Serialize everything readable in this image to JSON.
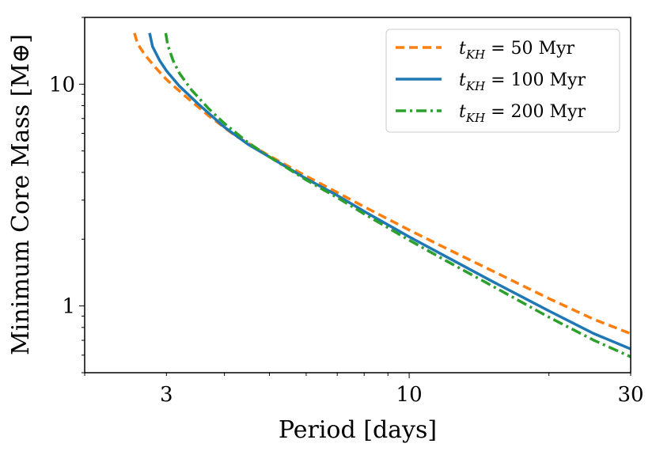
{
  "chart_data": {
    "type": "line",
    "xscale": "log",
    "yscale": "log",
    "xlabel": "Period [days]",
    "ylabel": "Minimum Core Mass [M⊕]",
    "xlim": [
      2.0,
      30.0
    ],
    "ylim": [
      0.5,
      20.0
    ],
    "xticks": [
      {
        "value": 3,
        "label": "3"
      },
      {
        "value": 10,
        "label": "10"
      },
      {
        "value": 30,
        "label": "30"
      }
    ],
    "yticks": [
      {
        "value": 1,
        "label": "1"
      },
      {
        "value": 10,
        "label": "10"
      }
    ],
    "legend_position": "top-right",
    "series": [
      {
        "name": "t_KH = 50 Myr",
        "legend_symbol": "t",
        "legend_subscript": "KH",
        "legend_rest": " = 50 Myr",
        "color": "#ff7f0e",
        "style": "dashed",
        "x": [
          2.56,
          2.6,
          2.7,
          2.85,
          3.0,
          3.3,
          3.7,
          4.2,
          5.0,
          6.0,
          7.0,
          8.0,
          10.0,
          12.0,
          15.0,
          20.0,
          25.0,
          30.0
        ],
        "y": [
          17.0,
          15.2,
          13.5,
          11.8,
          10.5,
          8.8,
          7.2,
          5.9,
          4.75,
          3.85,
          3.25,
          2.8,
          2.2,
          1.82,
          1.45,
          1.08,
          0.87,
          0.75
        ]
      },
      {
        "name": "t_KH = 100 Myr",
        "legend_symbol": "t",
        "legend_subscript": "KH",
        "legend_rest": " = 100 Myr",
        "color": "#1f77b4",
        "style": "solid",
        "x": [
          2.76,
          2.8,
          2.9,
          3.0,
          3.2,
          3.5,
          4.0,
          4.5,
          5.0,
          6.0,
          7.0,
          8.0,
          10.0,
          12.0,
          15.0,
          20.0,
          25.0,
          30.0
        ],
        "y": [
          17.0,
          14.8,
          12.8,
          11.5,
          9.8,
          8.2,
          6.4,
          5.35,
          4.7,
          3.75,
          3.15,
          2.67,
          2.05,
          1.67,
          1.3,
          0.95,
          0.75,
          0.64
        ]
      },
      {
        "name": "t_KH = 200 Myr",
        "legend_symbol": "t",
        "legend_subscript": "KH",
        "legend_rest": " = 200 Myr",
        "color": "#2ca02c",
        "style": "dashdot",
        "x": [
          2.99,
          3.02,
          3.1,
          3.2,
          3.4,
          3.7,
          4.0,
          4.5,
          5.0,
          6.0,
          7.0,
          8.0,
          10.0,
          12.0,
          15.0,
          20.0,
          25.0,
          30.0
        ],
        "y": [
          17.0,
          15.0,
          12.8,
          11.2,
          9.4,
          7.75,
          6.65,
          5.45,
          4.7,
          3.7,
          3.08,
          2.6,
          1.98,
          1.6,
          1.24,
          0.89,
          0.7,
          0.59
        ]
      }
    ]
  }
}
